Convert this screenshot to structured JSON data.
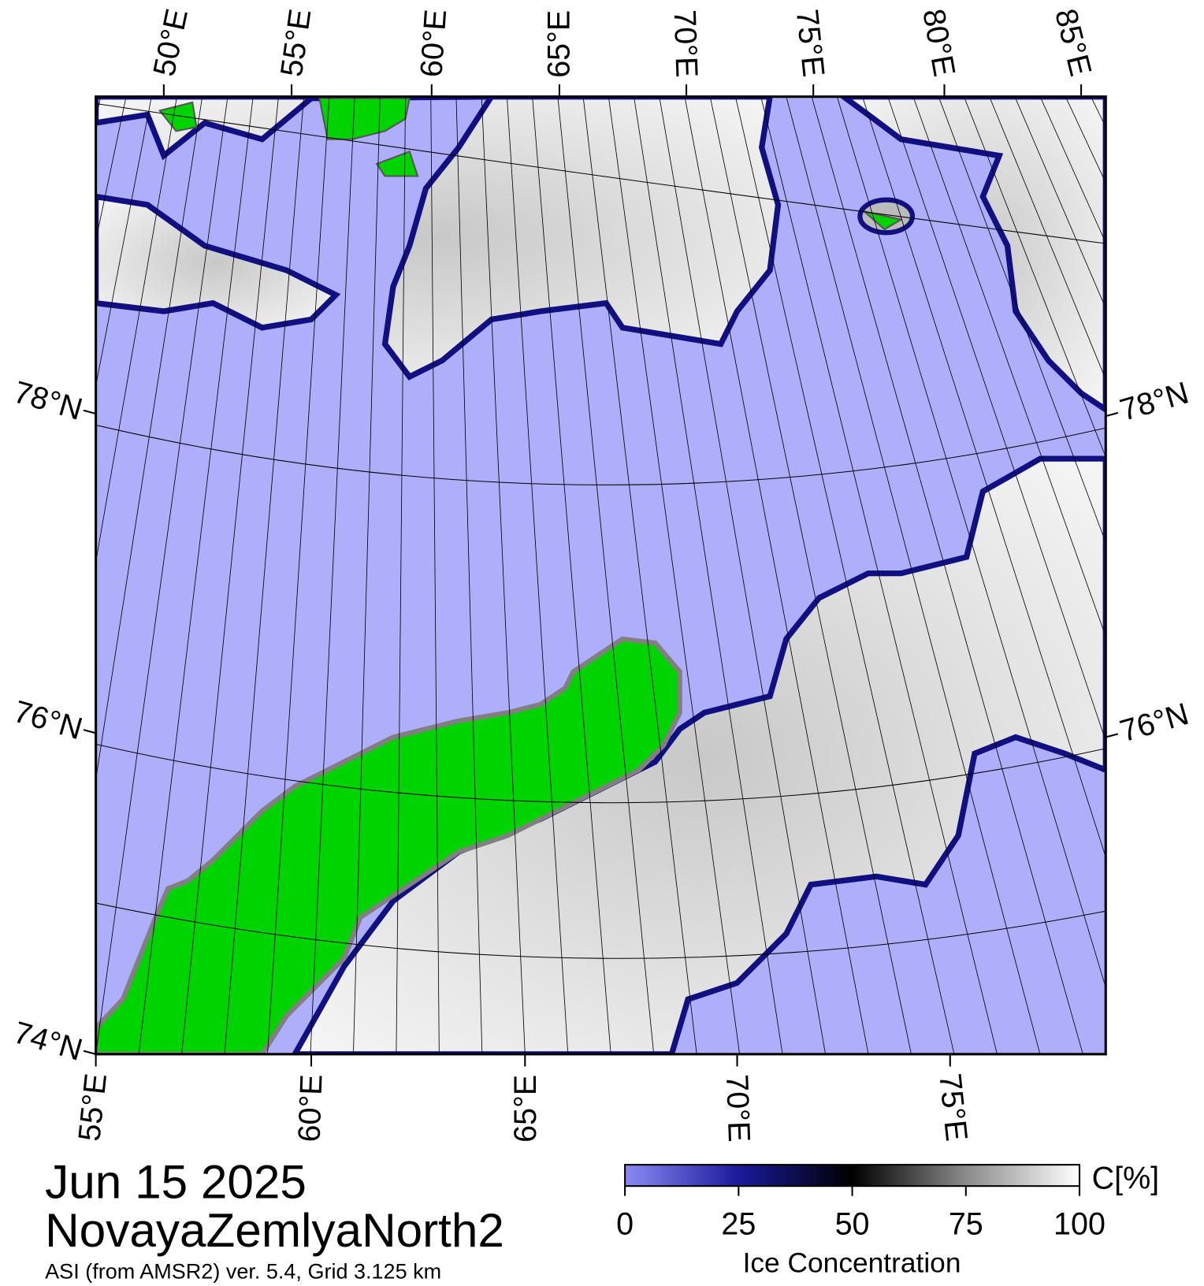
{
  "map": {
    "top_labels": [
      "50°E",
      "55°E",
      "60°E",
      "65°E",
      "70°E",
      "75°E",
      "80°E",
      "85°E"
    ],
    "bottom_labels": [
      "55°E",
      "60°E",
      "65°E",
      "70°E",
      "75°E"
    ],
    "left_labels": [
      "78°N",
      "76°N",
      "74°N"
    ],
    "right_labels": [
      "78°N",
      "76°N"
    ]
  },
  "footer": {
    "date": "Jun 15 2025",
    "region": "NovayaZemlyaNorth2",
    "source": "ASI (from AMSR2) ver. 5.4,  Grid 3.125 km"
  },
  "colorbar": {
    "ticks": [
      0,
      25,
      50,
      75,
      100
    ],
    "unit": "C[%]",
    "label": "Ice Concentration"
  }
}
